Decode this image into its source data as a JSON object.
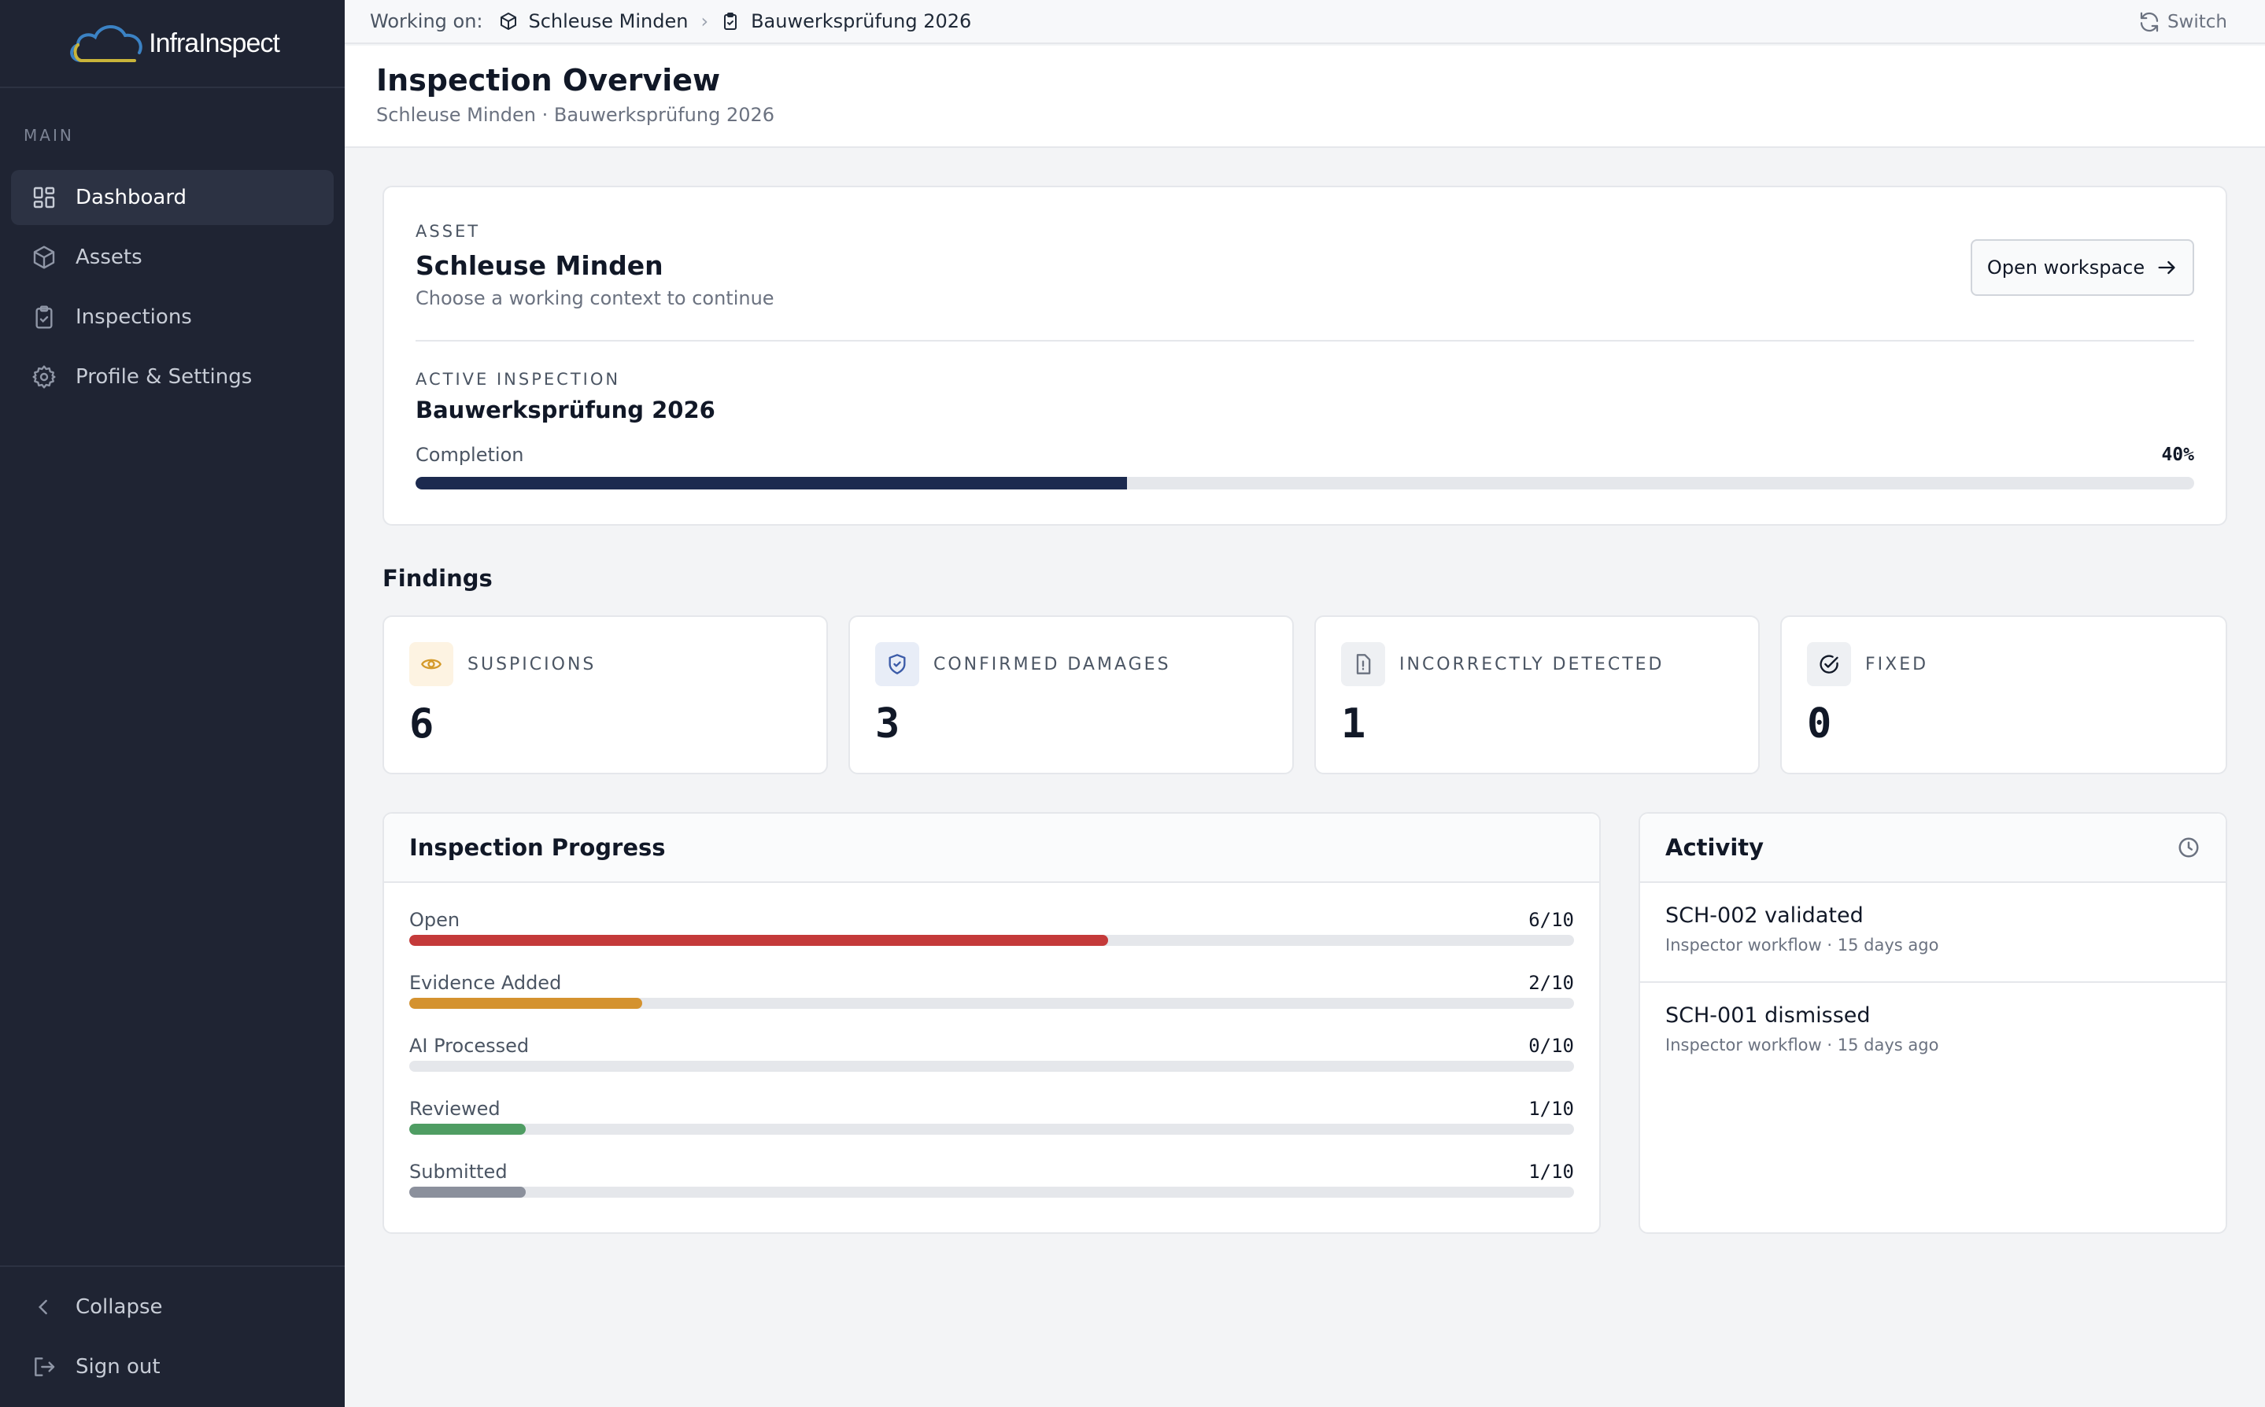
{
  "app": {
    "logo_text": "InfraInspect"
  },
  "sidebar": {
    "section_label": "MAIN",
    "items": [
      {
        "label": "Dashboard",
        "icon": "dashboard-icon",
        "active": true
      },
      {
        "label": "Assets",
        "icon": "box-icon"
      },
      {
        "label": "Inspections",
        "icon": "clipboard-check-icon"
      },
      {
        "label": "Profile & Settings",
        "icon": "gear-icon"
      }
    ],
    "collapse_label": "Collapse",
    "signout_label": "Sign out"
  },
  "topbar": {
    "working_on": "Working on:",
    "asset": "Schleuse Minden",
    "inspection": "Bauwerksprüfung 2026",
    "switch_label": "Switch"
  },
  "header": {
    "title": "Inspection Overview",
    "subtitle": "Schleuse Minden · Bauwerksprüfung 2026"
  },
  "asset_card": {
    "asset_label": "ASSET",
    "asset_name": "Schleuse Minden",
    "hint": "Choose a working context to continue",
    "open_button": "Open workspace",
    "active_label": "ACTIVE INSPECTION",
    "inspection_name": "Bauwerksprüfung 2026",
    "completion_label": "Completion",
    "completion_text": "40%",
    "completion": 0.4,
    "bar_color": "#1c2a4f"
  },
  "findings": {
    "title": "Findings",
    "cards": [
      {
        "label": "SUSPICIONS",
        "value": "6",
        "icon": "eye-icon",
        "icon_color": "#d49a2a",
        "icon_bg": "#fdf3e2"
      },
      {
        "label": "CONFIRMED DAMAGES",
        "value": "3",
        "icon": "shield-check-icon",
        "icon_color": "#3b5ba8",
        "icon_bg": "#e8edf7"
      },
      {
        "label": "INCORRECTLY DETECTED",
        "value": "1",
        "icon": "file-alert-icon",
        "icon_color": "#6b7280",
        "icon_bg": "#eef0f3"
      },
      {
        "label": "FIXED",
        "value": "0",
        "icon": "check-circle-icon",
        "icon_color": "#111827",
        "icon_bg": "#eef0f3"
      }
    ]
  },
  "progress": {
    "title": "Inspection Progress",
    "items": [
      {
        "label": "Open",
        "value": "6/10",
        "fraction": 0.6,
        "color": "#c43a3a"
      },
      {
        "label": "Evidence Added",
        "value": "2/10",
        "fraction": 0.2,
        "color": "#d4922f"
      },
      {
        "label": "AI Processed",
        "value": "0/10",
        "fraction": 0.0,
        "color": "#9ca3af"
      },
      {
        "label": "Reviewed",
        "value": "1/10",
        "fraction": 0.1,
        "color": "#4f9d63"
      },
      {
        "label": "Submitted",
        "value": "1/10",
        "fraction": 0.1,
        "color": "#8b909c"
      }
    ]
  },
  "activity": {
    "title": "Activity",
    "items": [
      {
        "title": "SCH-002 validated",
        "meta": "Inspector workflow · 15 days ago"
      },
      {
        "title": "SCH-001 dismissed",
        "meta": "Inspector workflow · 15 days ago"
      }
    ]
  }
}
